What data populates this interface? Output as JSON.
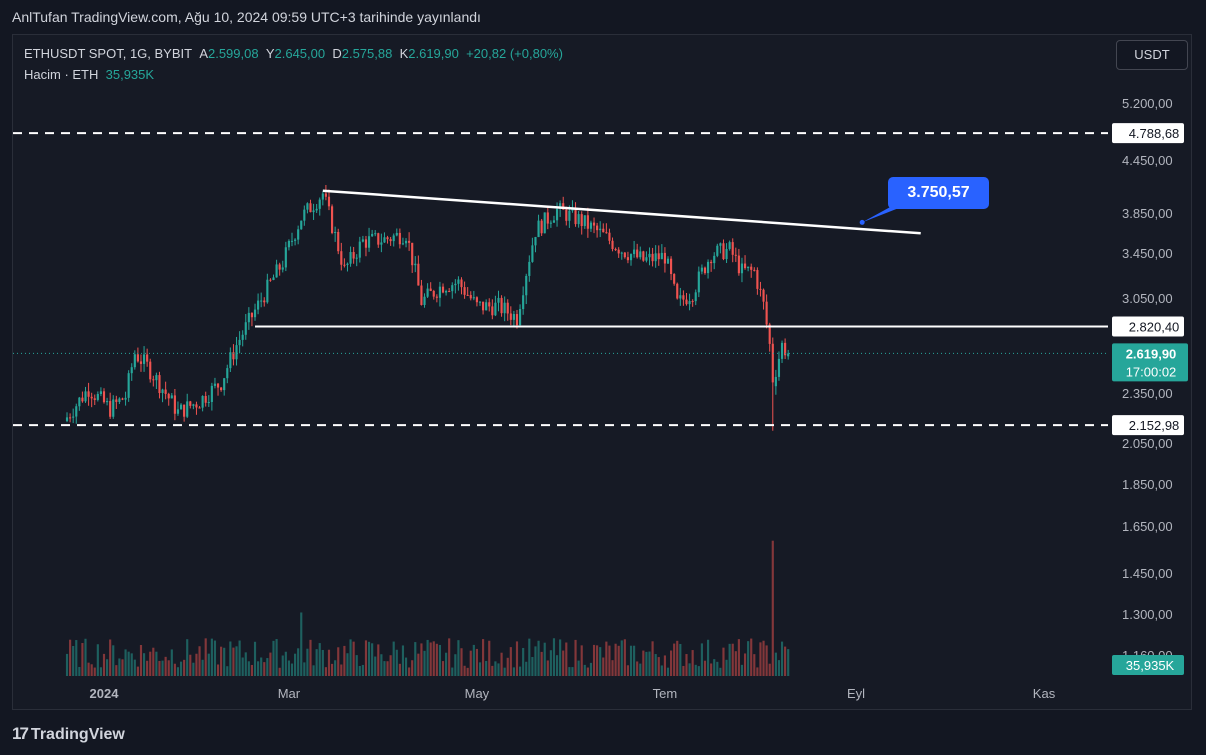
{
  "header": {
    "publish_text": "AnlTufan TradingView.com, Ağu 10, 2024 09:59 UTC+3 tarihinde yayınlandı"
  },
  "legend": {
    "symbol": "ETHUSDT SPOT, 1G, BYBIT",
    "open_label": "A",
    "open_value": "2.599,08",
    "high_label": "Y",
    "high_value": "2.645,00",
    "low_label": "D",
    "low_value": "2.575,88",
    "close_label": "K",
    "close_value": "2.619,90",
    "change": "+20,82 (+0,80%)",
    "volume_label": "Hacim · ETH",
    "volume_value": "35,935K"
  },
  "currency_button": "USDT",
  "footer": {
    "logo": "17",
    "brand": "TradingView"
  },
  "callout_label": "3.750,57",
  "chart_data": {
    "type": "candlestick",
    "symbol": "ETHUSDT",
    "y_axis": {
      "ticks": [
        "5.200,00",
        "4.450,00",
        "3.850,00",
        "3.450,00",
        "3.050,00",
        "2.350,00",
        "2.050,00",
        "1.850,00",
        "1.650,00",
        "1.450,00",
        "1.300,00",
        "1.160,00"
      ],
      "values": [
        5200,
        4450,
        3850,
        3450,
        3050,
        2350,
        2050,
        1850,
        1650,
        1450,
        1300,
        1160
      ],
      "scale": "log"
    },
    "x_axis": {
      "ticks": [
        "2024",
        "Mar",
        "May",
        "Tem",
        "Eyl",
        "Kas"
      ]
    },
    "price_labels": [
      {
        "text": "4.788,68",
        "value": 4788.68,
        "style": "dashed-line"
      },
      {
        "text": "2.820,40",
        "value": 2820.4,
        "style": "solid-line"
      },
      {
        "text": "2.152,98",
        "value": 2152.98,
        "style": "dashed-line"
      }
    ],
    "last_price": {
      "text": "2.619,90",
      "timer": "17:00:02",
      "value": 2619.9
    },
    "volume_badge": "35,935K",
    "trendline": {
      "from": {
        "date": "2024-03-12",
        "value": 4090
      },
      "to": {
        "date": "2024-09-22",
        "value": 3640
      }
    },
    "support_line_start": "2024-02-19",
    "callout": {
      "value": 3750.57,
      "date": "2024-09-03"
    },
    "series": [
      {
        "name": "ETHUSDT",
        "points": [
          {
            "date": "2023-12-20",
            "close": 2200
          },
          {
            "date": "2023-12-27",
            "close": 2380
          },
          {
            "date": "2024-01-03",
            "close": 2250
          },
          {
            "date": "2024-01-08",
            "close": 2330
          },
          {
            "date": "2024-01-11",
            "close": 2620
          },
          {
            "date": "2024-01-15",
            "close": 2530
          },
          {
            "date": "2024-01-22",
            "close": 2320
          },
          {
            "date": "2024-01-25",
            "close": 2230
          },
          {
            "date": "2024-02-01",
            "close": 2300
          },
          {
            "date": "2024-02-08",
            "close": 2420
          },
          {
            "date": "2024-02-13",
            "close": 2680
          },
          {
            "date": "2024-02-20",
            "close": 2990
          },
          {
            "date": "2024-02-28",
            "close": 3360
          },
          {
            "date": "2024-03-05",
            "close": 3800
          },
          {
            "date": "2024-03-12",
            "close": 4060
          },
          {
            "date": "2024-03-15",
            "close": 3720
          },
          {
            "date": "2024-03-19",
            "close": 3290
          },
          {
            "date": "2024-03-25",
            "close": 3560
          },
          {
            "date": "2024-04-01",
            "close": 3580
          },
          {
            "date": "2024-04-08",
            "close": 3640
          },
          {
            "date": "2024-04-13",
            "close": 3020
          },
          {
            "date": "2024-04-20",
            "close": 3160
          },
          {
            "date": "2024-04-25",
            "close": 3180
          },
          {
            "date": "2024-05-01",
            "close": 2980
          },
          {
            "date": "2024-05-08",
            "close": 2980
          },
          {
            "date": "2024-05-14",
            "close": 2890
          },
          {
            "date": "2024-05-20",
            "close": 3670
          },
          {
            "date": "2024-05-27",
            "close": 3880
          },
          {
            "date": "2024-06-03",
            "close": 3780
          },
          {
            "date": "2024-06-10",
            "close": 3640
          },
          {
            "date": "2024-06-17",
            "close": 3480
          },
          {
            "date": "2024-06-24",
            "close": 3380
          },
          {
            "date": "2024-07-01",
            "close": 3420
          },
          {
            "date": "2024-07-05",
            "close": 3000
          },
          {
            "date": "2024-07-10",
            "close": 3100
          },
          {
            "date": "2024-07-16",
            "close": 3440
          },
          {
            "date": "2024-07-22",
            "close": 3480
          },
          {
            "date": "2024-07-26",
            "close": 3280
          },
          {
            "date": "2024-07-30",
            "close": 3280
          },
          {
            "date": "2024-08-02",
            "close": 2990
          },
          {
            "date": "2024-08-04",
            "close": 2680
          },
          {
            "date": "2024-08-05",
            "close": 2420
          },
          {
            "date": "2024-08-08",
            "close": 2680
          },
          {
            "date": "2024-08-10",
            "close": 2619.9
          }
        ]
      }
    ]
  }
}
